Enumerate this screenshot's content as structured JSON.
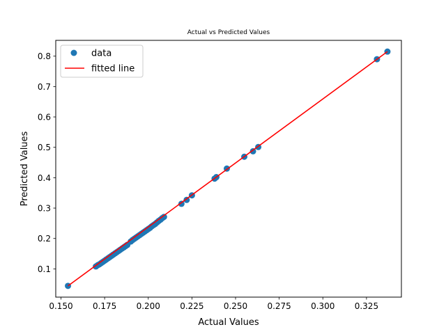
{
  "chart_data": {
    "type": "scatter",
    "title": "Actual vs Predicted Values",
    "xlabel": "Actual Values",
    "ylabel": "Predicted Values",
    "xlim": [
      0.147,
      0.345
    ],
    "ylim": [
      0.007,
      0.852
    ],
    "x_ticks": [
      "0.150",
      "0.175",
      "0.200",
      "0.225",
      "0.250",
      "0.275",
      "0.300",
      "0.325"
    ],
    "y_ticks": [
      "0.1",
      "0.2",
      "0.3",
      "0.4",
      "0.5",
      "0.6",
      "0.7",
      "0.8"
    ],
    "grid": false,
    "legend_position": "top-left",
    "colors": {
      "data": "#1f77b4",
      "fitted_line": "#ff0000"
    },
    "series": [
      {
        "name": "data",
        "type": "scatter",
        "points": [
          [
            0.154,
            0.044
          ],
          [
            0.17,
            0.108
          ],
          [
            0.171,
            0.112
          ],
          [
            0.172,
            0.115
          ],
          [
            0.173,
            0.119
          ],
          [
            0.174,
            0.123
          ],
          [
            0.175,
            0.127
          ],
          [
            0.176,
            0.131
          ],
          [
            0.177,
            0.135
          ],
          [
            0.178,
            0.139
          ],
          [
            0.179,
            0.143
          ],
          [
            0.18,
            0.147
          ],
          [
            0.181,
            0.151
          ],
          [
            0.182,
            0.155
          ],
          [
            0.183,
            0.159
          ],
          [
            0.184,
            0.163
          ],
          [
            0.185,
            0.167
          ],
          [
            0.186,
            0.171
          ],
          [
            0.187,
            0.175
          ],
          [
            0.188,
            0.179
          ],
          [
            0.19,
            0.19
          ],
          [
            0.191,
            0.195
          ],
          [
            0.192,
            0.199
          ],
          [
            0.193,
            0.203
          ],
          [
            0.194,
            0.207
          ],
          [
            0.195,
            0.211
          ],
          [
            0.196,
            0.215
          ],
          [
            0.197,
            0.219
          ],
          [
            0.198,
            0.223
          ],
          [
            0.199,
            0.227
          ],
          [
            0.2,
            0.231
          ],
          [
            0.201,
            0.235
          ],
          [
            0.202,
            0.24
          ],
          [
            0.203,
            0.244
          ],
          [
            0.204,
            0.248
          ],
          [
            0.205,
            0.253
          ],
          [
            0.206,
            0.258
          ],
          [
            0.207,
            0.262
          ],
          [
            0.208,
            0.267
          ],
          [
            0.209,
            0.271
          ],
          [
            0.219,
            0.314
          ],
          [
            0.222,
            0.327
          ],
          [
            0.225,
            0.342
          ],
          [
            0.238,
            0.397
          ],
          [
            0.239,
            0.402
          ],
          [
            0.245,
            0.43
          ],
          [
            0.255,
            0.469
          ],
          [
            0.26,
            0.487
          ],
          [
            0.263,
            0.501
          ],
          [
            0.331,
            0.79
          ],
          [
            0.337,
            0.815
          ]
        ]
      },
      {
        "name": "fitted line",
        "type": "line",
        "points": [
          [
            0.154,
            0.044
          ],
          [
            0.337,
            0.815
          ]
        ]
      }
    ]
  }
}
